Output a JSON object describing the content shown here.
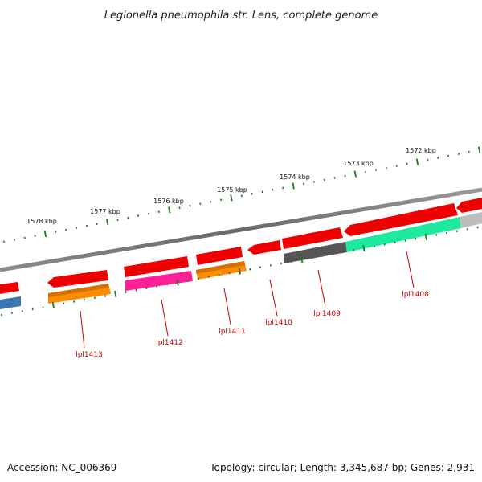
{
  "title": "Legionella pneumophila str. Lens, complete genome",
  "accession_text": "Accession: NC_006369",
  "summary_text": "Topology: circular; Length: 3,345,687 bp; Genes: 2,931",
  "colors": {
    "backbone": "#7a7a7a",
    "tick": "#1e7a1e",
    "label": "#cc0000",
    "forward_gene": "#ee0000",
    "reverse_default": "#ee0000",
    "magenta": "#ff1f96",
    "orange": "#ff8c00",
    "dark_gray": "#555555",
    "green": "#1de9a0",
    "light_gray": "#bdbdbd",
    "steel_blue": "#3a76b0"
  },
  "chart_data": {
    "type": "circular-genome-map",
    "view": "zoomed arc segment",
    "tick_labels": [
      "1578 kbp",
      "1577 kbp",
      "1576 kbp",
      "1575 kbp",
      "1574 kbp",
      "1573 kbp",
      "1572 kbp"
    ],
    "tick_positions_kbp": [
      1578,
      1577,
      1576,
      1575,
      1574,
      1573,
      1572
    ],
    "gene_labels": [
      "lpl1413",
      "lpl1412",
      "lpl1411",
      "lpl1410",
      "lpl1409",
      "lpl1408"
    ]
  }
}
